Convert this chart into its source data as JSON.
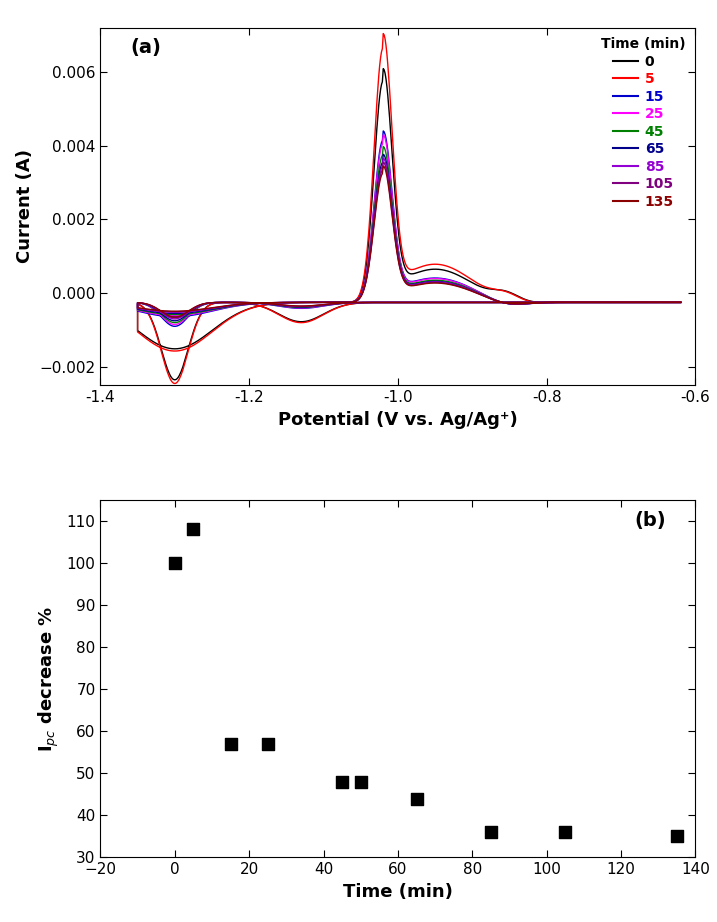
{
  "panel_a_label": "(a)",
  "panel_b_label": "(b)",
  "xlabel_a": "Potential (V vs. Ag/Ag⁺)",
  "ylabel_a": "Current (A)",
  "xlabel_b": "Time (min)",
  "ylabel_b": "I$_{pc}$ decrease %",
  "xlim_a": [
    -1.4,
    -0.6
  ],
  "ylim_a": [
    -0.0025,
    0.0072
  ],
  "yticks_a": [
    -0.002,
    0.0,
    0.002,
    0.004,
    0.006
  ],
  "xticks_a": [
    -1.4,
    -1.2,
    -1.0,
    -0.8,
    -0.6
  ],
  "xlim_b": [
    -20,
    140
  ],
  "ylim_b": [
    30,
    115
  ],
  "yticks_b": [
    30,
    40,
    50,
    60,
    70,
    80,
    90,
    100,
    110
  ],
  "xticks_b": [
    -20,
    0,
    20,
    40,
    60,
    80,
    100,
    120,
    140
  ],
  "legend_title": "Time (min)",
  "legend_labels": [
    "0",
    "5",
    "15",
    "25",
    "45",
    "65",
    "85",
    "105",
    "135"
  ],
  "line_colors": [
    "#000000",
    "#ff0000",
    "#0000cd",
    "#ff00ff",
    "#008000",
    "#00008b",
    "#9400d3",
    "#800080",
    "#8b0000"
  ],
  "scatter_x": [
    0,
    5,
    15,
    25,
    45,
    50,
    65,
    85,
    105,
    135
  ],
  "scatter_y": [
    100,
    108,
    57,
    57,
    48,
    48,
    44,
    36,
    36,
    35
  ],
  "scatter_color": "#000000",
  "scatter_size": 80,
  "background_color": "#ffffff",
  "cv_params": [
    {
      "anodic_peak": 0.006,
      "cathodic_dip": -0.0021,
      "group": "large"
    },
    {
      "anodic_peak": 0.0069,
      "cathodic_dip": -0.0022,
      "group": "large"
    },
    {
      "anodic_peak": 0.0044,
      "cathodic_dip": -0.00065,
      "group": "medium"
    },
    {
      "anodic_peak": 0.0043,
      "cathodic_dip": -0.0006,
      "group": "medium"
    },
    {
      "anodic_peak": 0.004,
      "cathodic_dip": -0.00055,
      "group": "medium"
    },
    {
      "anodic_peak": 0.0038,
      "cathodic_dip": -0.0005,
      "group": "medium"
    },
    {
      "anodic_peak": 0.0037,
      "cathodic_dip": -0.00045,
      "group": "medium"
    },
    {
      "anodic_peak": 0.0036,
      "cathodic_dip": -0.00042,
      "group": "medium"
    },
    {
      "anodic_peak": 0.0035,
      "cathodic_dip": -0.0004,
      "group": "medium"
    }
  ]
}
